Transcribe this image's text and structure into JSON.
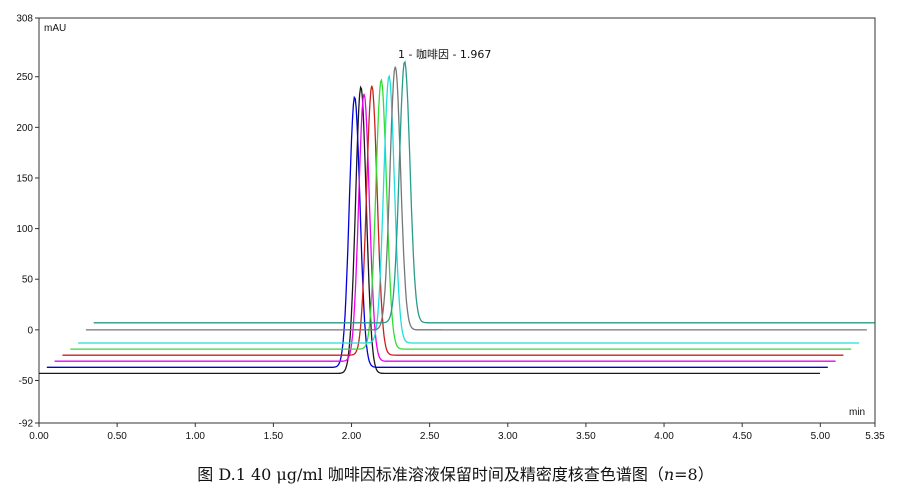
{
  "caption": {
    "prefix": "图 D.1 40 μg/ml 咖啡因标准溶液保留时间及精密度核查色谱图（",
    "n_var": "n",
    "suffix": "=8）"
  },
  "chart_data": {
    "type": "line",
    "title": "",
    "xlabel": "min",
    "ylabel": "mAU",
    "xlim": [
      0.0,
      5.35
    ],
    "ylim": [
      -92,
      308
    ],
    "x_ticks": [
      {
        "v": 0.0,
        "label": "0.00"
      },
      {
        "v": 0.5,
        "label": "0.50"
      },
      {
        "v": 1.0,
        "label": "1.00"
      },
      {
        "v": 1.5,
        "label": "1.50"
      },
      {
        "v": 2.0,
        "label": "2.00"
      },
      {
        "v": 2.5,
        "label": "2.50"
      },
      {
        "v": 3.0,
        "label": "3.00"
      },
      {
        "v": 3.5,
        "label": "3.50"
      },
      {
        "v": 4.0,
        "label": "4.00"
      },
      {
        "v": 4.5,
        "label": "4.50"
      },
      {
        "v": 5.0,
        "label": "5.00"
      },
      {
        "v": 5.35,
        "label": "5.35"
      }
    ],
    "y_ticks": [
      {
        "v": 308,
        "label": "308"
      },
      {
        "v": 250,
        "label": "250"
      },
      {
        "v": 200,
        "label": "200"
      },
      {
        "v": 150,
        "label": "150"
      },
      {
        "v": 100,
        "label": "100"
      },
      {
        "v": 50,
        "label": "50"
      },
      {
        "v": 0,
        "label": "0"
      },
      {
        "v": -50,
        "label": "-50"
      },
      {
        "v": -92,
        "label": "-92"
      }
    ],
    "grid": false,
    "peak_label": "1 - 咖啡因 - 1.967",
    "series": [
      {
        "color": "#1a1a1a",
        "start": 0.0,
        "end": 5.0,
        "baseline": -43,
        "peak_x": 2.06,
        "peak_y": 240
      },
      {
        "color": "#0000dd",
        "start": 0.05,
        "end": 5.05,
        "baseline": -37,
        "peak_x": 2.02,
        "peak_y": 230
      },
      {
        "color": "#ee00ee",
        "start": 0.1,
        "end": 5.1,
        "baseline": -31,
        "peak_x": 2.08,
        "peak_y": 233
      },
      {
        "color": "#cc2020",
        "start": 0.15,
        "end": 5.15,
        "baseline": -25,
        "peak_x": 2.13,
        "peak_y": 241
      },
      {
        "color": "#33dd33",
        "start": 0.2,
        "end": 5.2,
        "baseline": -19,
        "peak_x": 2.19,
        "peak_y": 247
      },
      {
        "color": "#22dddd",
        "start": 0.25,
        "end": 5.25,
        "baseline": -13,
        "peak_x": 2.24,
        "peak_y": 251
      },
      {
        "color": "#777777",
        "start": 0.3,
        "end": 5.3,
        "baseline": 0,
        "peak_x": 2.28,
        "peak_y": 260
      },
      {
        "color": "#2a9a8a",
        "start": 0.35,
        "end": 5.35,
        "baseline": 7,
        "peak_x": 2.34,
        "peak_y": 265
      }
    ]
  }
}
